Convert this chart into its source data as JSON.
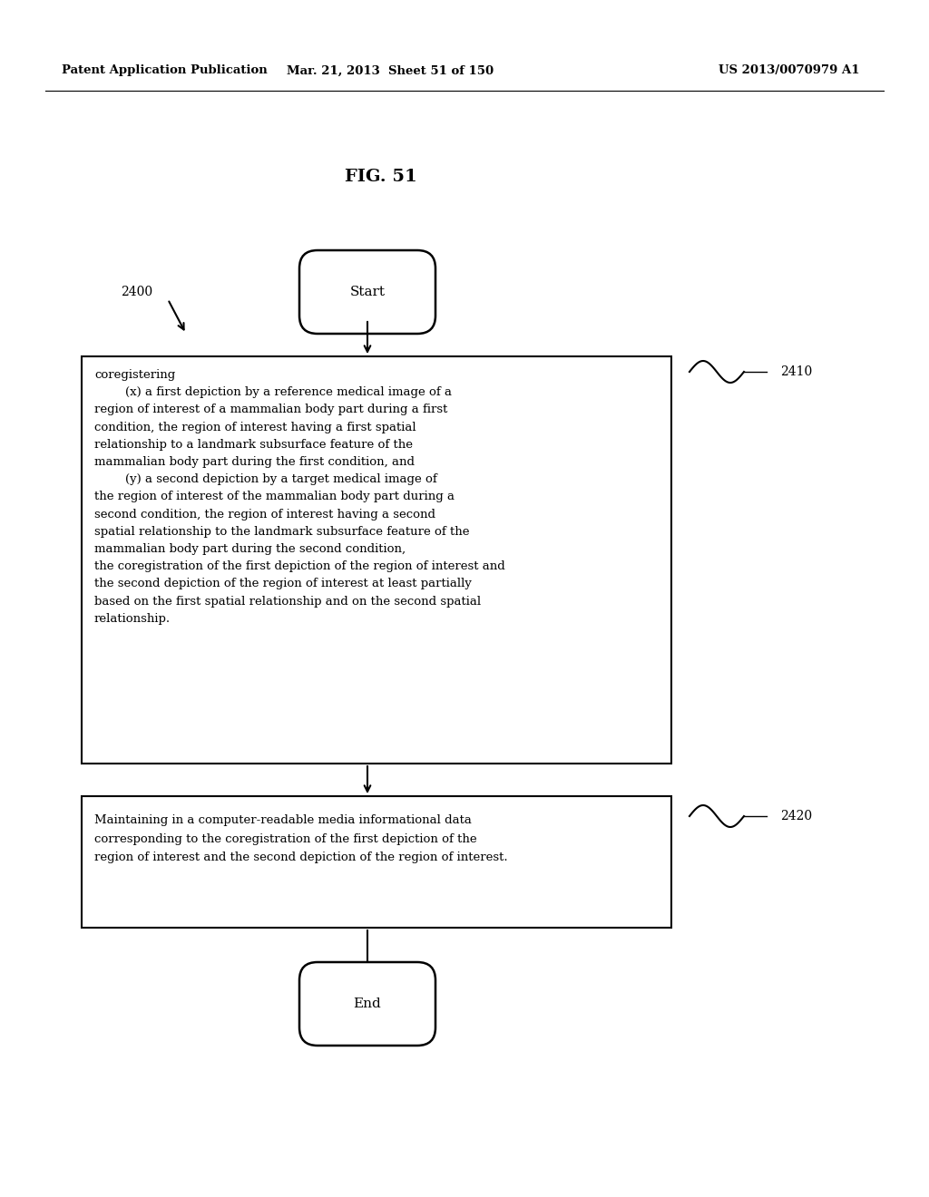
{
  "bg_color": "#ffffff",
  "header_left": "Patent Application Publication",
  "header_mid": "Mar. 21, 2013  Sheet 51 of 150",
  "header_right": "US 2013/0070979 A1",
  "fig_label": "FIG. 51",
  "start_label": "Start",
  "end_label": "End",
  "ref_2400": "2400",
  "ref_2410": "2410",
  "ref_2420": "2420",
  "box1_line1": "coregistering",
  "box1_line2": "        (x) a first depiction by a reference medical image of a",
  "box1_line3": "region of interest of a mammalian body part during a first",
  "box1_line4": "condition, the region of interest having a first spatial",
  "box1_line5": "relationship to a landmark subsurface feature of the",
  "box1_line6": "mammalian body part during the first condition, and",
  "box1_line7": "        (y) a second depiction by a target medical image of",
  "box1_line8": "the region of interest of the mammalian body part during a",
  "box1_line9": "second condition, the region of interest having a second",
  "box1_line10": "spatial relationship to the landmark subsurface feature of the",
  "box1_line11": "mammalian body part during the second condition,",
  "box1_line12": "the coregistration of the first depiction of the region of interest and",
  "box1_line13": "the second depiction of the region of interest at least partially",
  "box1_line14": "based on the first spatial relationship and on the second spatial",
  "box1_line15": "relationship.",
  "box2_line1": "Maintaining in a computer-readable media informational data",
  "box2_line2": "corresponding to the coregistration of the first depiction of the",
  "box2_line3": "region of interest and the second depiction of the region of interest."
}
